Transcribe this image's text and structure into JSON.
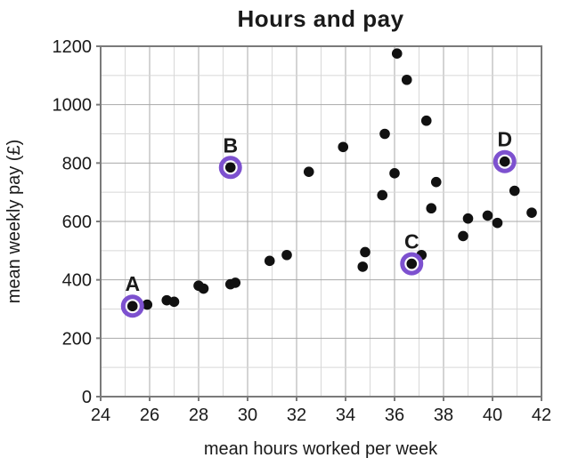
{
  "title": "Hours and pay",
  "chart_data": {
    "type": "scatter",
    "title": "Hours and pay",
    "xlabel": "mean hours worked per week",
    "ylabel": "mean weekly pay (£)",
    "xlim": [
      24,
      42
    ],
    "ylim": [
      0,
      1200
    ],
    "x_major_step": 2,
    "x_minor_step": 1,
    "y_major_step": 200,
    "y_minor_step": 100,
    "grid": true,
    "legend": "none",
    "points": [
      {
        "x": 25.3,
        "y": 310
      },
      {
        "x": 25.9,
        "y": 315
      },
      {
        "x": 26.7,
        "y": 330
      },
      {
        "x": 27.0,
        "y": 325
      },
      {
        "x": 28.0,
        "y": 380
      },
      {
        "x": 28.2,
        "y": 370
      },
      {
        "x": 29.3,
        "y": 385
      },
      {
        "x": 29.5,
        "y": 390
      },
      {
        "x": 29.3,
        "y": 785
      },
      {
        "x": 30.9,
        "y": 465
      },
      {
        "x": 31.6,
        "y": 485
      },
      {
        "x": 32.5,
        "y": 770
      },
      {
        "x": 33.9,
        "y": 855
      },
      {
        "x": 34.7,
        "y": 445
      },
      {
        "x": 34.8,
        "y": 495
      },
      {
        "x": 35.5,
        "y": 690
      },
      {
        "x": 35.6,
        "y": 900
      },
      {
        "x": 36.0,
        "y": 765
      },
      {
        "x": 36.1,
        "y": 1175
      },
      {
        "x": 36.5,
        "y": 1085
      },
      {
        "x": 36.7,
        "y": 455
      },
      {
        "x": 37.1,
        "y": 485
      },
      {
        "x": 37.3,
        "y": 945
      },
      {
        "x": 37.5,
        "y": 645
      },
      {
        "x": 37.7,
        "y": 735
      },
      {
        "x": 38.8,
        "y": 550
      },
      {
        "x": 39.0,
        "y": 610
      },
      {
        "x": 39.8,
        "y": 620
      },
      {
        "x": 40.2,
        "y": 595
      },
      {
        "x": 40.5,
        "y": 805
      },
      {
        "x": 40.9,
        "y": 705
      },
      {
        "x": 41.6,
        "y": 630
      }
    ],
    "highlighted_points": [
      {
        "label": "A",
        "x": 25.3,
        "y": 310
      },
      {
        "label": "B",
        "x": 29.3,
        "y": 785
      },
      {
        "label": "C",
        "x": 36.7,
        "y": 455
      },
      {
        "label": "D",
        "x": 40.5,
        "y": 805
      }
    ],
    "colors": {
      "point": "#111111",
      "highlight": "#7d51cf",
      "grid_minor": "#d8d8d8",
      "grid_major": "#a8a8a8",
      "frame": "#7a7a7a",
      "text": "#1a1a1a"
    }
  }
}
